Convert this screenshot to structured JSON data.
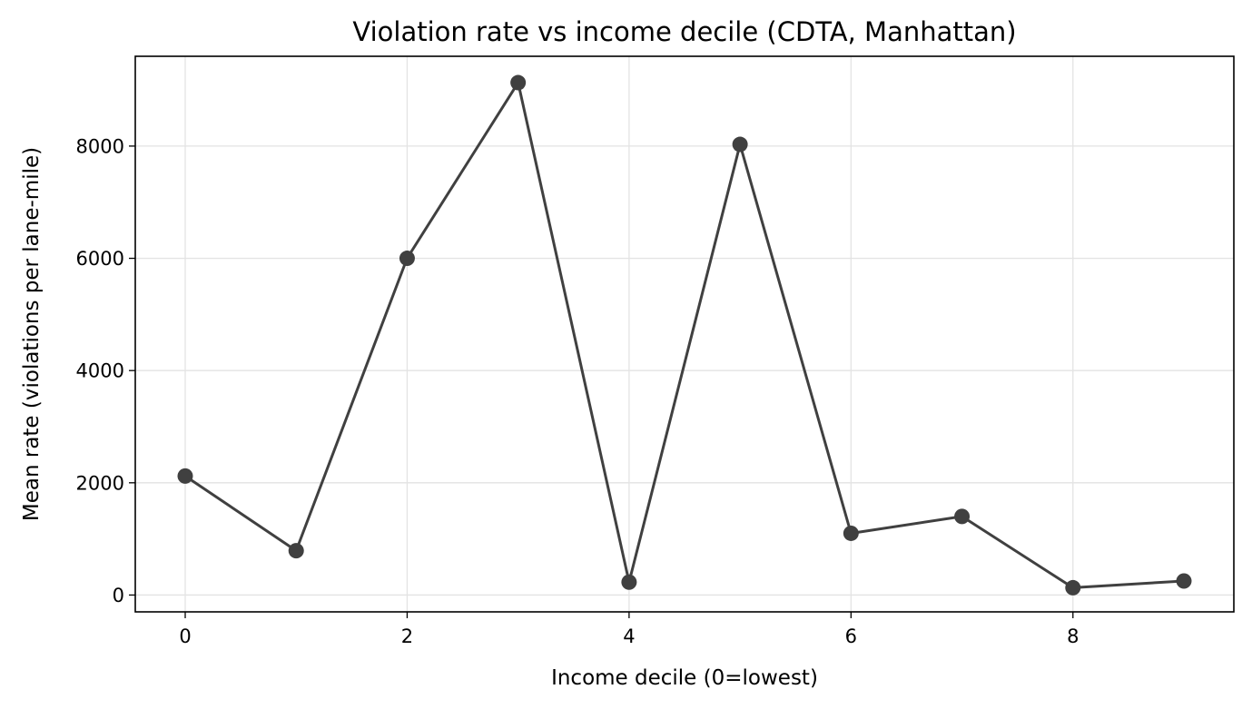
{
  "chart_data": {
    "type": "line",
    "title": "Violation rate vs income decile (CDTA, Manhattan)",
    "xlabel": "Income decile (0=lowest)",
    "ylabel": "Mean rate (violations per lane-mile)",
    "xlim": [
      -0.45,
      9.45
    ],
    "ylim": [
      -300,
      9600
    ],
    "xticks": [
      0,
      2,
      4,
      6,
      8
    ],
    "yticks": [
      0,
      2000,
      4000,
      6000,
      8000
    ],
    "xtick_labels": [
      "0",
      "2",
      "4",
      "6",
      "8"
    ],
    "ytick_labels": [
      "0",
      "2000",
      "4000",
      "6000",
      "8000"
    ],
    "grid": true,
    "series": [
      {
        "x": [
          0,
          1,
          2,
          3,
          4,
          5,
          6,
          7,
          8,
          9
        ],
        "values": [
          2120,
          790,
          6000,
          9130,
          230,
          8030,
          1100,
          1400,
          130,
          250
        ],
        "color": "#404040",
        "marker": "circle"
      }
    ]
  }
}
